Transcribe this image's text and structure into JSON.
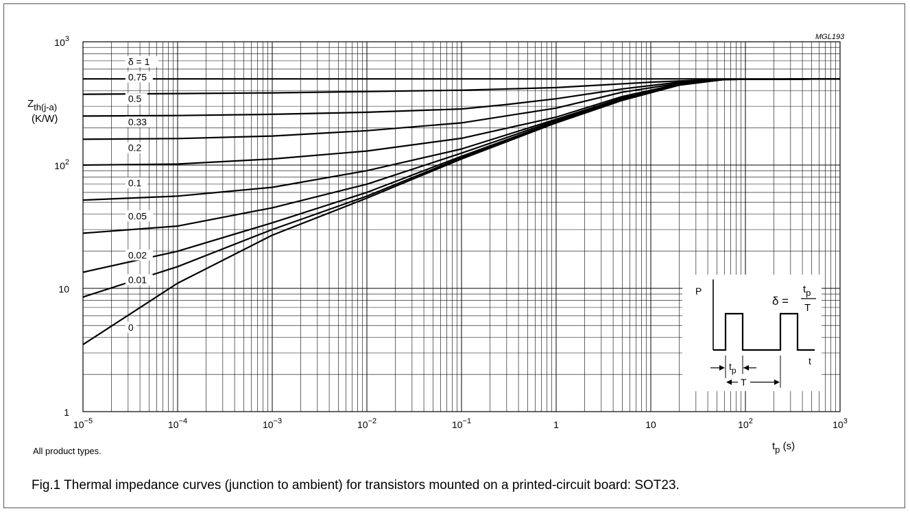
{
  "chart_data": {
    "type": "line",
    "code": "MGL193",
    "ylabel": {
      "main": "Z",
      "sub": "th(j-a)",
      "unit": "(K/W)"
    },
    "xlabel": {
      "main": "t",
      "sub": "p",
      "unit": "(s)"
    },
    "x_scale": "log",
    "y_scale": "log",
    "xlim": [
      1e-05,
      1000
    ],
    "ylim": [
      1,
      1000
    ],
    "grid": true,
    "x_ticks": [
      {
        "mant": "10",
        "exp": "−5"
      },
      {
        "mant": "10",
        "exp": "−4"
      },
      {
        "mant": "10",
        "exp": "−3"
      },
      {
        "mant": "10",
        "exp": "−2"
      },
      {
        "mant": "10",
        "exp": "−1"
      },
      {
        "mant": "1",
        "exp": ""
      },
      {
        "mant": "10",
        "exp": ""
      },
      {
        "mant": "10",
        "exp": "2"
      },
      {
        "mant": "10",
        "exp": "3"
      }
    ],
    "y_ticks": [
      {
        "mant": "1",
        "exp": ""
      },
      {
        "mant": "10",
        "exp": ""
      },
      {
        "mant": "10",
        "exp": "2"
      },
      {
        "mant": "10",
        "exp": "3"
      }
    ],
    "series": [
      {
        "name": "δ = 1",
        "x": [
          1e-05,
          1000
        ],
        "y": [
          500,
          500
        ]
      },
      {
        "name": "0.75",
        "x": [
          1e-05,
          0.0001,
          0.001,
          0.01,
          0.1,
          1,
          10,
          50,
          1000
        ],
        "y": [
          375,
          380,
          385,
          395,
          405,
          425,
          470,
          495,
          500
        ]
      },
      {
        "name": "0.5",
        "x": [
          1e-05,
          0.0001,
          0.001,
          0.01,
          0.1,
          0.3,
          1,
          5,
          20,
          60,
          1000
        ],
        "y": [
          250,
          252,
          258,
          268,
          285,
          310,
          345,
          415,
          470,
          495,
          500
        ]
      },
      {
        "name": "0.33",
        "x": [
          1e-05,
          0.0001,
          0.001,
          0.01,
          0.1,
          1,
          5,
          20,
          60,
          1000
        ],
        "y": [
          162,
          164,
          172,
          190,
          220,
          290,
          390,
          460,
          495,
          500
        ]
      },
      {
        "name": "0.2",
        "x": [
          1e-05,
          0.0001,
          0.001,
          0.01,
          0.1,
          1,
          5,
          20,
          60,
          1000
        ],
        "y": [
          100,
          102,
          112,
          130,
          165,
          245,
          360,
          455,
          495,
          500
        ]
      },
      {
        "name": "0.1",
        "x": [
          1e-05,
          0.0001,
          0.001,
          0.01,
          0.1,
          1,
          5,
          20,
          60,
          1000
        ],
        "y": [
          52,
          56,
          66,
          90,
          135,
          235,
          350,
          450,
          495,
          500
        ]
      },
      {
        "name": "0.05",
        "x": [
          1e-05,
          0.0001,
          0.001,
          0.01,
          0.1,
          1,
          5,
          20,
          60,
          1000
        ],
        "y": [
          28,
          32,
          45,
          70,
          125,
          230,
          345,
          450,
          495,
          500
        ]
      },
      {
        "name": "0.02",
        "x": [
          1e-05,
          0.0001,
          0.001,
          0.01,
          0.1,
          1,
          5,
          20,
          60,
          1000
        ],
        "y": [
          13.5,
          20,
          34,
          60,
          118,
          225,
          340,
          448,
          495,
          500
        ]
      },
      {
        "name": "0.01",
        "x": [
          1e-05,
          0.0001,
          0.001,
          0.01,
          0.1,
          1,
          5,
          20,
          60,
          1000
        ],
        "y": [
          8.5,
          15,
          30,
          56,
          115,
          222,
          338,
          446,
          495,
          500
        ]
      },
      {
        "name": "0",
        "x": [
          1e-05,
          0.0001,
          0.001,
          0.01,
          0.1,
          1,
          5,
          20,
          60,
          1000
        ],
        "y": [
          3.5,
          11,
          27,
          54,
          112,
          220,
          335,
          445,
          495,
          500
        ]
      }
    ],
    "inset": {
      "p_label": "P",
      "t_label": "t",
      "tp_main": "t",
      "tp_sub": "p",
      "T_label": "T",
      "delta_label": "δ =",
      "frac_num_main": "t",
      "frac_num_sub": "p",
      "frac_den": "T"
    }
  },
  "note": "All product types.",
  "caption": "Fig.1  Thermal impedance curves (junction to ambient) for transistors mounted on a printed-circuit board: SOT23."
}
